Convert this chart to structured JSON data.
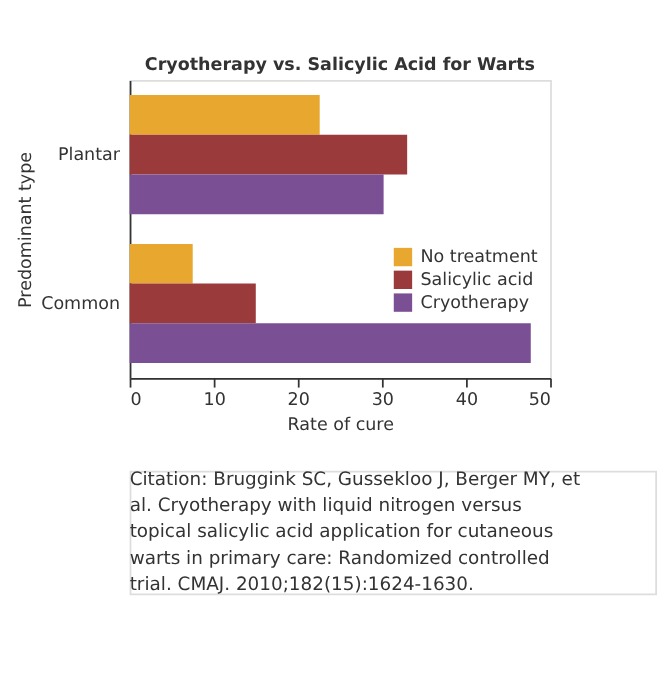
{
  "chart_data": {
    "type": "bar",
    "orientation": "horizontal",
    "title": "Cryotherapy vs. Salicylic Acid for Warts",
    "xlabel": "Rate of cure",
    "ylabel": "Predominant type",
    "categories": [
      "Plantar",
      "Common"
    ],
    "series": [
      {
        "name": "No treatment",
        "color": "#e8a830",
        "values": [
          22.6,
          7.5
        ]
      },
      {
        "name": "Salicylic acid",
        "color": "#9b3a3a",
        "values": [
          33.0,
          15.0
        ]
      },
      {
        "name": "Cryotherapy",
        "color": "#7a4f94",
        "values": [
          30.2,
          47.7
        ]
      }
    ],
    "xlim": [
      0,
      50
    ],
    "xticks": [
      0,
      10,
      20,
      30,
      40,
      50
    ],
    "grid": false,
    "legend": "right",
    "annotations": [
      "Citation: Bruggink SC, Gussekloo J, Berger MY, et al. Cryotherapy with liquid nitrogen versus topical salicylic acid application for cutaneous warts in primary care: Randomized controlled trial. CMAJ. 2010;182(15):1624-1630."
    ]
  }
}
